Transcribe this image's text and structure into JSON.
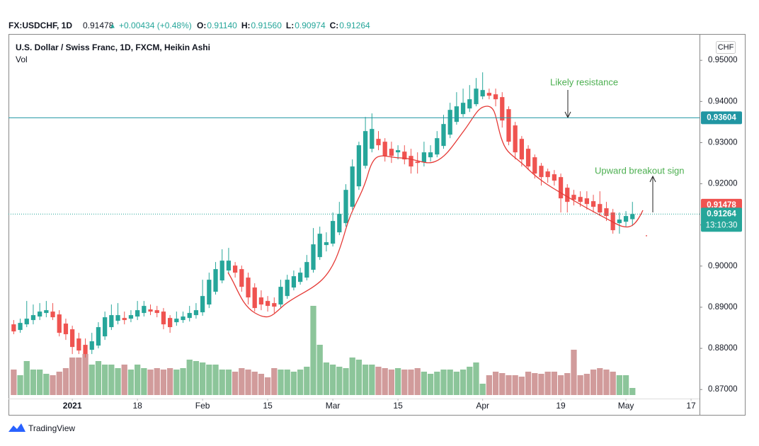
{
  "header": {
    "symbol": "FX:USDCHF, 1D",
    "last": "0.91478",
    "change": "+0.00434 (+0.48%)",
    "ohlc": [
      {
        "key": "O:",
        "value": "0.91140"
      },
      {
        "key": "H:",
        "value": "0.91560"
      },
      {
        "key": "L:",
        "value": "0.90974"
      },
      {
        "key": "C:",
        "value": "0.91264"
      }
    ]
  },
  "brand": "TradingView",
  "chart_data": {
    "type": "candlestick",
    "title": "U.S. Dollar / Swiss Franc, 1D, FXCM, Heikin Ashi",
    "volume_label": "Vol",
    "currency": "CHF",
    "up_color": "#26a69a",
    "down_color": "#ef5350",
    "up_volume_color": "#8cc59a",
    "down_volume_color": "#d19b9b",
    "open": [
      0.88584,
      0.88447,
      0.88584,
      0.88688,
      0.88774,
      0.8886,
      0.88894,
      0.88825,
      0.88602,
      0.88464,
      0.8824,
      0.88086,
      0.87965,
      0.88068,
      0.88292,
      0.88516,
      0.8867,
      0.88739,
      0.88722,
      0.88774,
      0.8886,
      0.88946,
      0.88928,
      0.88894,
      0.88739,
      0.88636,
      0.88688,
      0.88739,
      0.88808,
      0.88877,
      0.89066,
      0.89376,
      0.89651,
      0.89892,
      0.90012,
      0.89926,
      0.8972,
      0.89479,
      0.89238,
      0.89152,
      0.891,
      0.89066,
      0.89272,
      0.89479,
      0.89616,
      0.8972,
      0.89909,
      0.90218,
      0.90511,
      0.90545,
      0.9082,
      0.91044,
      0.9144,
      0.91938,
      0.92437,
      0.9285,
      0.93091,
      0.93022,
      0.9285,
      0.92764,
      0.92781,
      0.92678,
      0.9254,
      0.92523,
      0.92644,
      0.92712,
      0.92919,
      0.93194,
      0.93504,
      0.93693,
      0.9383,
      0.93934,
      0.94123,
      0.94209,
      0.94174,
      0.94106,
      0.93813,
      0.93418,
      0.93091,
      0.9285,
      0.92644,
      0.92437,
      0.923,
      0.92231,
      0.92162,
      0.91904,
      0.91732,
      0.9168,
      0.91646,
      0.91577,
      0.91508,
      0.91405,
      0.91302,
      0.91044,
      0.91078,
      0.9114
    ],
    "high": [
      0.88688,
      0.88722,
      0.89152,
      0.89066,
      0.891,
      0.89152,
      0.891,
      0.88928,
      0.88722,
      0.8855,
      0.88378,
      0.8824,
      0.88378,
      0.88636,
      0.88894,
      0.89066,
      0.891,
      0.88894,
      0.88928,
      0.89152,
      0.89152,
      0.89066,
      0.89032,
      0.8898,
      0.88808,
      0.88894,
      0.88894,
      0.89032,
      0.891,
      0.89668,
      0.8984,
      0.90098,
      0.90408,
      0.90442,
      0.90098,
      0.90012,
      0.8984,
      0.89582,
      0.8941,
      0.89272,
      0.89238,
      0.89668,
      0.89788,
      0.89892,
      0.8996,
      0.9027,
      0.90924,
      0.90958,
      0.9082,
      0.91302,
      0.9156,
      0.9199,
      0.92592,
      0.93022,
      0.93624,
      0.9371,
      0.9328,
      0.93108,
      0.93022,
      0.92936,
      0.92936,
      0.9285,
      0.92764,
      0.93022,
      0.92936,
      0.9328,
      0.93676,
      0.93968,
      0.94226,
      0.94312,
      0.94398,
      0.9457,
      0.94708,
      0.94312,
      0.94312,
      0.94226,
      0.93882,
      0.93504,
      0.9316,
      0.92936,
      0.92712,
      0.92506,
      0.92368,
      0.92334,
      0.92248,
      0.9199,
      0.91852,
      0.91818,
      0.91818,
      0.91732,
      0.91818,
      0.9156,
      0.91388,
      0.91302,
      0.91336,
      0.9156
    ],
    "low": [
      0.88344,
      0.88378,
      0.88516,
      0.88584,
      0.88688,
      0.88756,
      0.88688,
      0.88292,
      0.88206,
      0.87862,
      0.87862,
      0.87776,
      0.87862,
      0.88,
      0.88206,
      0.88447,
      0.88584,
      0.88584,
      0.88636,
      0.88688,
      0.88774,
      0.88808,
      0.88756,
      0.88464,
      0.88378,
      0.8855,
      0.88619,
      0.88653,
      0.88722,
      0.88791,
      0.8898,
      0.89307,
      0.89582,
      0.89823,
      0.8972,
      0.89376,
      0.89066,
      0.88894,
      0.88928,
      0.88894,
      0.8886,
      0.8898,
      0.89204,
      0.8941,
      0.89548,
      0.89651,
      0.8984,
      0.9015,
      0.90356,
      0.90476,
      0.90752,
      0.90958,
      0.91371,
      0.91852,
      0.92368,
      0.92764,
      0.92816,
      0.9254,
      0.92506,
      0.92592,
      0.92472,
      0.92248,
      0.92248,
      0.9242,
      0.9254,
      0.92644,
      0.9285,
      0.93108,
      0.93435,
      0.93624,
      0.93744,
      0.93882,
      0.94054,
      0.94054,
      0.93882,
      0.93366,
      0.92936,
      0.92592,
      0.9242,
      0.92334,
      0.92128,
      0.91956,
      0.92024,
      0.91956,
      0.91302,
      0.91302,
      0.91474,
      0.9144,
      0.91371,
      0.91302,
      0.91216,
      0.91096,
      0.90786,
      0.90786,
      0.90958,
      0.90974
    ],
    "close": [
      0.88412,
      0.88619,
      0.88722,
      0.88808,
      0.88894,
      0.88928,
      0.88756,
      0.88378,
      0.88344,
      0.88034,
      0.87948,
      0.87862,
      0.88172,
      0.88516,
      0.88756,
      0.88808,
      0.88808,
      0.88688,
      0.88808,
      0.88928,
      0.89032,
      0.88894,
      0.8886,
      0.88584,
      0.88516,
      0.88722,
      0.88774,
      0.8886,
      0.88928,
      0.89272,
      0.89668,
      0.89926,
      0.90132,
      0.90132,
      0.8984,
      0.89496,
      0.89238,
      0.8898,
      0.89066,
      0.89032,
      0.89014,
      0.89496,
      0.89668,
      0.89754,
      0.8984,
      0.90098,
      0.90528,
      0.90786,
      0.9058,
      0.91096,
      0.91268,
      0.91852,
      0.9242,
      0.92936,
      0.9328,
      0.93332,
      0.92936,
      0.92678,
      0.92678,
      0.92816,
      0.92592,
      0.9242,
      0.92506,
      0.92764,
      0.92764,
      0.93108,
      0.93452,
      0.93796,
      0.93882,
      0.93968,
      0.94054,
      0.94312,
      0.94278,
      0.9414,
      0.94054,
      0.93538,
      0.93022,
      0.92764,
      0.92592,
      0.9242,
      0.92248,
      0.92162,
      0.92162,
      0.92076,
      0.91646,
      0.9156,
      0.91612,
      0.9156,
      0.91508,
      0.9144,
      0.91302,
      0.91216,
      0.90872,
      0.9113,
      0.91216,
      0.91264
    ],
    "volume": [
      36,
      28,
      48,
      36,
      36,
      30,
      28,
      33,
      38,
      53,
      53,
      58,
      43,
      48,
      43,
      43,
      38,
      43,
      36,
      43,
      38,
      36,
      38,
      36,
      38,
      36,
      38,
      50,
      48,
      46,
      43,
      43,
      36,
      36,
      33,
      38,
      36,
      33,
      30,
      25,
      38,
      36,
      36,
      33,
      36,
      40,
      126,
      71,
      46,
      43,
      40,
      38,
      53,
      50,
      43,
      43,
      40,
      38,
      36,
      38,
      36,
      36,
      38,
      33,
      30,
      33,
      36,
      36,
      33,
      36,
      40,
      46,
      16,
      28,
      33,
      31,
      28,
      28,
      26,
      33,
      31,
      30,
      33,
      33,
      28,
      31,
      64,
      28,
      30,
      36,
      38,
      36,
      33,
      28,
      28,
      10
    ],
    "vlim": [
      0,
      510
    ],
    "xlim": [
      -0.8,
      105.3
    ],
    "xticks": [
      {
        "value": 9,
        "label": "2021"
      },
      {
        "value": 19,
        "label": "18"
      },
      {
        "value": 29,
        "label": "Feb"
      },
      {
        "value": 39,
        "label": "15"
      },
      {
        "value": 49,
        "label": "Mar"
      },
      {
        "value": 59,
        "label": "15"
      },
      {
        "value": 72,
        "label": "Apr"
      },
      {
        "value": 84,
        "label": "19"
      },
      {
        "value": 94,
        "label": "May"
      },
      {
        "value": 104,
        "label": "17"
      }
    ],
    "ylim": [
      0.8678,
      0.9564
    ],
    "yticks": [
      {
        "value": 0.87,
        "label": "0.87000"
      },
      {
        "value": 0.88,
        "label": "0.88000"
      },
      {
        "value": 0.89,
        "label": "0.89000"
      },
      {
        "value": 0.9,
        "label": "0.90000"
      },
      {
        "value": 0.91,
        "label": "0.91000"
      },
      {
        "value": 0.92,
        "label": "0.92000"
      },
      {
        "value": 0.93,
        "label": "0.93000"
      },
      {
        "value": 0.94,
        "label": "0.94000"
      },
      {
        "value": 0.95,
        "label": "0.95000"
      }
    ],
    "lines": [
      {
        "value": 0.93604,
        "label": "0.93604",
        "color": "#2196a3"
      }
    ],
    "price_labels": [
      {
        "value": 0.91478,
        "label": "0.91478",
        "color": "#ef5350"
      },
      {
        "value": 0.91264,
        "label": "0.91264",
        "color": "#26a69a",
        "countdown": "13:10:30"
      }
    ],
    "annotations": [
      {
        "text": "Likely resistance",
        "color": "#4caf50"
      },
      {
        "text": "Upward breakout sign",
        "color": "#4caf50"
      }
    ]
  }
}
